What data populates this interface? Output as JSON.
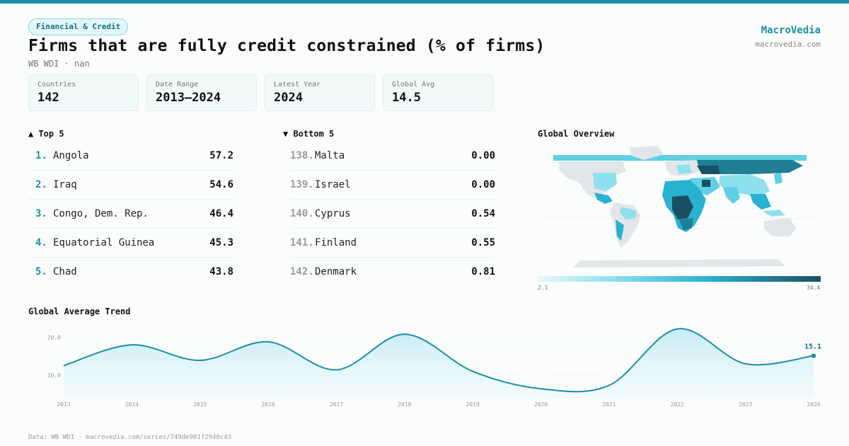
{
  "header": {
    "badge": "Financial & Credit",
    "title": "Firms that are fully credit constrained (% of firms)",
    "subtitle": "WB WDI · nan",
    "brand": "MacroVedia",
    "brand_url": "macrovedia.com"
  },
  "stats": [
    {
      "label": "Countries",
      "value": "142"
    },
    {
      "label": "Date Range",
      "value": "2013–2024"
    },
    {
      "label": "Latest Year",
      "value": "2024"
    },
    {
      "label": "Global Avg",
      "value": "14.5"
    }
  ],
  "top5": {
    "heading": "▲ Top 5",
    "items": [
      {
        "rank": "1.",
        "name": "Angola",
        "value": "57.2"
      },
      {
        "rank": "2.",
        "name": "Iraq",
        "value": "54.6"
      },
      {
        "rank": "3.",
        "name": "Congo, Dem. Rep.",
        "value": "46.4"
      },
      {
        "rank": "4.",
        "name": "Equatorial Guinea",
        "value": "45.3"
      },
      {
        "rank": "5.",
        "name": "Chad",
        "value": "43.8"
      }
    ]
  },
  "bottom5": {
    "heading": "▼ Bottom 5",
    "items": [
      {
        "rank": "138.",
        "name": "Malta",
        "value": "0.00"
      },
      {
        "rank": "139.",
        "name": "Israel",
        "value": "0.00"
      },
      {
        "rank": "140.",
        "name": "Cyprus",
        "value": "0.54"
      },
      {
        "rank": "141.",
        "name": "Finland",
        "value": "0.55"
      },
      {
        "rank": "142.",
        "name": "Denmark",
        "value": "0.81"
      }
    ]
  },
  "map": {
    "heading": "Global Overview",
    "legend_min": "2.1",
    "legend_max": "34.4",
    "colors": {
      "low": "#e8f9fc",
      "mid": "#29b2cf",
      "high": "#1a4f63",
      "nodata": "#e3e6e8"
    }
  },
  "trend": {
    "heading": "Global Average Trend"
  },
  "footer": "Data: WB WDI · macrovedia.com/series/749de901f2946c43",
  "colors": {
    "accent": "#1a8fa8",
    "fill": "#cdeff6"
  },
  "chart_data": {
    "type": "area",
    "title": "Global Average Trend",
    "x": [
      2013,
      2014,
      2015,
      2016,
      2017,
      2018,
      2019,
      2020,
      2021,
      2022,
      2023,
      2024
    ],
    "series": [
      {
        "values": [
          12.5,
          18.0,
          13.9,
          18.8,
          11.4,
          20.8,
          11.0,
          6.4,
          7.3,
          22.2,
          13.0,
          15.1
        ]
      }
    ],
    "y_ticks": [
      10.0,
      20.0
    ],
    "ylim": [
      4,
      24
    ],
    "last_label": "15.1",
    "grid": true
  }
}
